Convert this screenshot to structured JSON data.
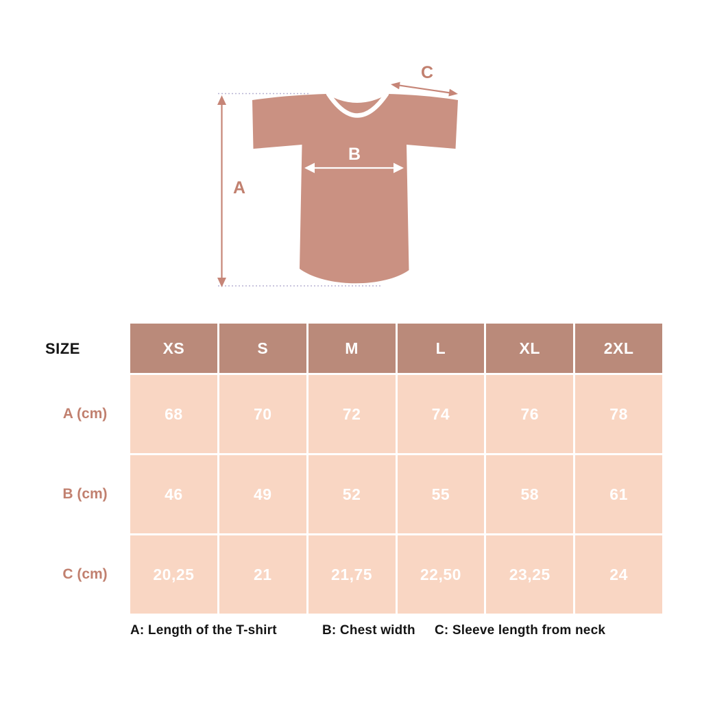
{
  "diagram": {
    "label_a": "A",
    "label_b": "B",
    "label_c": "C",
    "shirt_color": "#ca9182",
    "arrow_color": "#c68577",
    "label_color": "#c1806f"
  },
  "table": {
    "corner_label": "SIZE",
    "header_bg": "#ba8a7a",
    "cell_bg": "#f9d6c3",
    "sizes": [
      "XS",
      "S",
      "M",
      "L",
      "XL",
      "2XL"
    ],
    "rows": [
      {
        "label": "A (cm)",
        "values": [
          "68",
          "70",
          "72",
          "74",
          "76",
          "78"
        ]
      },
      {
        "label": "B (cm)",
        "values": [
          "46",
          "49",
          "52",
          "55",
          "58",
          "61"
        ]
      },
      {
        "label": "C (cm)",
        "values": [
          "20,25",
          "21",
          "21,75",
          "22,50",
          "23,25",
          "24"
        ]
      }
    ]
  },
  "legend": {
    "items": [
      "A: Length of the T-shirt",
      "B: Chest width",
      "C: Sleeve length from neck"
    ]
  },
  "chart_data": {
    "type": "table",
    "title": "T-shirt size chart",
    "columns": [
      "XS",
      "S",
      "M",
      "L",
      "XL",
      "2XL"
    ],
    "series": [
      {
        "name": "A (cm)",
        "values": [
          68,
          70,
          72,
          74,
          76,
          78
        ]
      },
      {
        "name": "B (cm)",
        "values": [
          46,
          49,
          52,
          55,
          58,
          61
        ]
      },
      {
        "name": "C (cm)",
        "values": [
          20.25,
          21,
          21.75,
          22.5,
          23.25,
          24
        ]
      }
    ]
  }
}
